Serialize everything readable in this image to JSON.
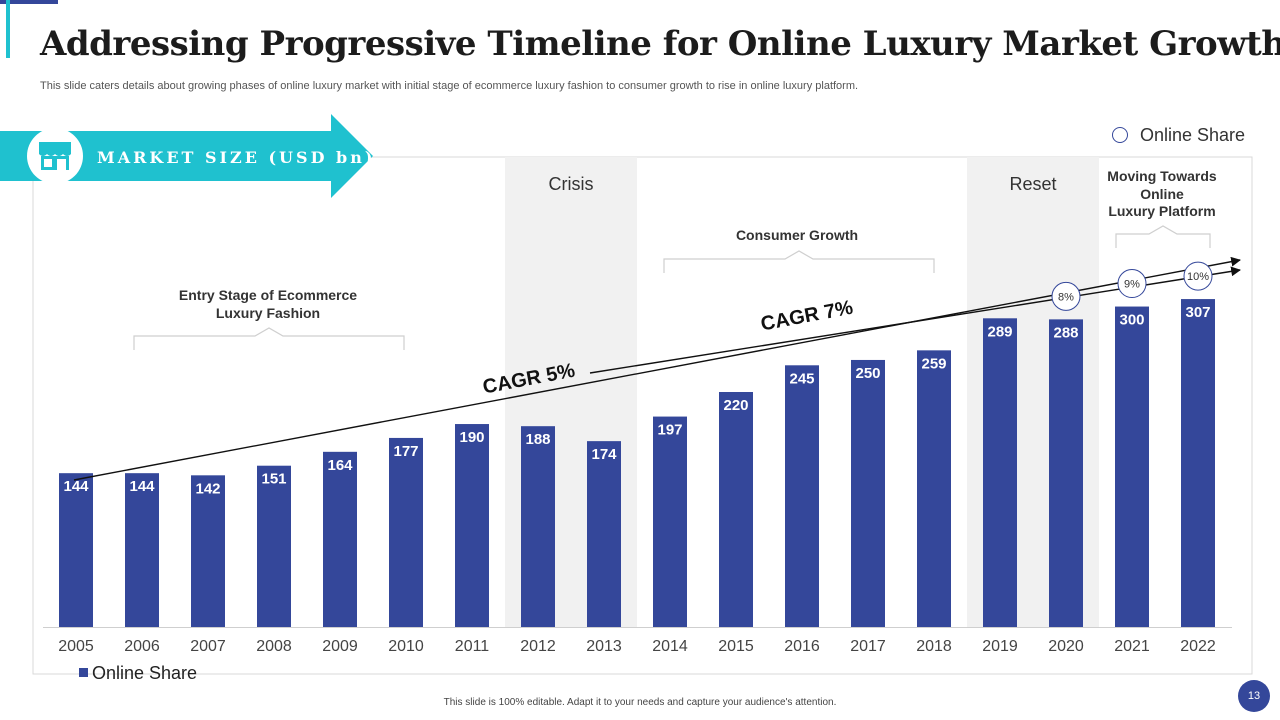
{
  "title": "Addressing Progressive Timeline for Online Luxury Market Growth",
  "subtitle": "This slide caters details about growing phases of online luxury market with initial stage of ecommerce luxury fashion to consumer growth to rise in online luxury platform.",
  "footer_note": "This slide is 100% editable.  Adapt it to your needs and capture your audience's attention.",
  "page_number": "13",
  "colors": {
    "bar": "#34479a",
    "accent": "#1fc1cf",
    "shade": "#f1f1f1"
  },
  "banner": {
    "label": "MARKET SIZE (USD bn)",
    "icon": "store-icon"
  },
  "legend_top": "Online Share",
  "legend_bottom": "Online Share",
  "chart_data": {
    "type": "bar",
    "categories": [
      "2005",
      "2006",
      "2007",
      "2008",
      "2009",
      "2010",
      "2011",
      "2012",
      "2013",
      "2014",
      "2015",
      "2016",
      "2017",
      "2018",
      "2019",
      "2020",
      "2021",
      "2022"
    ],
    "series": [
      {
        "name": "Online Share",
        "values": [
          144,
          144,
          142,
          151,
          164,
          177,
          190,
          188,
          174,
          197,
          220,
          245,
          250,
          259,
          289,
          288,
          300,
          307
        ]
      }
    ],
    "ylabel": "MARKET SIZE (USD bn)",
    "ylim": [
      0,
      440
    ],
    "online_share_pct": [
      {
        "year": "2020",
        "label": "8%"
      },
      {
        "year": "2021",
        "label": "9%"
      },
      {
        "year": "2022",
        "label": "10%"
      }
    ],
    "shaded_periods": [
      {
        "label": "Crisis",
        "years": [
          "2012",
          "2013"
        ]
      },
      {
        "label": "Reset",
        "years": [
          "2019",
          "2020"
        ]
      }
    ],
    "phases": [
      {
        "label": "Entry Stage of Ecommerce\nLuxury Fashion"
      },
      {
        "label": "Consumer Growth"
      },
      {
        "label": "Moving Towards\nOnline\nLuxury Platform"
      }
    ],
    "cagr": [
      {
        "label": "CAGR 5%"
      },
      {
        "label": "CAGR 7%"
      }
    ]
  }
}
